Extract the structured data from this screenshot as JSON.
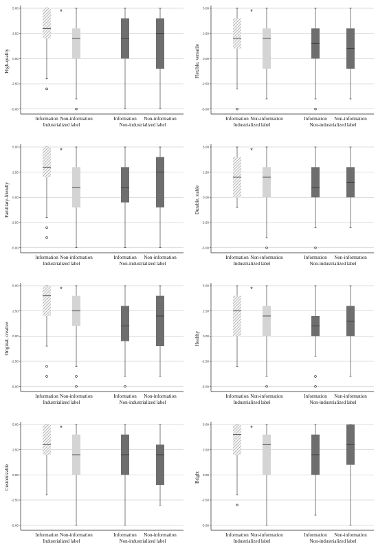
{
  "figure": {
    "pattern_colors": {
      "hatched_fill": "#f4f4f4",
      "hatched_line": "#8a8a8a",
      "light_gray": "#d4d4d4",
      "dark_gray": "#6e6e6e",
      "median": "#333333",
      "gridline": "#bdbdbd",
      "axis": "#222222"
    }
  },
  "chart_data": [
    {
      "type": "box",
      "ylabel": "High-quality",
      "ylim": [
        -5.5,
        5.0
      ],
      "yticks": [
        5.0,
        2.5,
        0.0,
        -2.5,
        -5.0
      ],
      "ytick_labels": [
        "5.00",
        "2.50",
        "0.00",
        "-2.50",
        "-5.00"
      ],
      "grid": "horizontal",
      "categories": [
        "Information",
        "Non-information",
        "Information",
        "Non-information"
      ],
      "groups": [
        "Industrialized label",
        "Non-industrialized label"
      ],
      "significance_marker": "*",
      "boxes": [
        {
          "whisker_low": -2,
          "q1": 2,
          "median": 3,
          "q3": 5,
          "whisker_high": 5,
          "outliers": [
            -3
          ]
        },
        {
          "whisker_low": -4,
          "q1": 0,
          "median": 2,
          "q3": 3,
          "whisker_high": 5,
          "outliers": [
            -5
          ]
        },
        {
          "whisker_low": -5,
          "q1": 0,
          "median": 2,
          "q3": 4,
          "whisker_high": 5,
          "outliers": []
        },
        {
          "whisker_low": -5,
          "q1": -1,
          "median": 2.5,
          "q3": 4,
          "whisker_high": 5,
          "outliers": []
        }
      ]
    },
    {
      "type": "box",
      "ylabel": "Flexible, versatile",
      "ylim": [
        -5.5,
        5.0
      ],
      "yticks": [
        5.0,
        2.5,
        0.0,
        -2.5,
        -5.0
      ],
      "ytick_labels": [
        "5.00",
        "2.50",
        "0.00",
        "-2.50",
        "-5.00"
      ],
      "grid": "horizontal",
      "categories": [
        "Information",
        "Non-information",
        "Information",
        "Non-information"
      ],
      "groups": [
        "Industrialized label",
        "Non-industrialized label"
      ],
      "significance_marker": "*",
      "boxes": [
        {
          "whisker_low": -3,
          "q1": 1,
          "median": 2,
          "q3": 4,
          "whisker_high": 5,
          "outliers": [
            -5
          ]
        },
        {
          "whisker_low": -4,
          "q1": -1,
          "median": 2,
          "q3": 3,
          "whisker_high": 5,
          "outliers": []
        },
        {
          "whisker_low": -4,
          "q1": 0,
          "median": 1.5,
          "q3": 3,
          "whisker_high": 5,
          "outliers": [
            -5
          ]
        },
        {
          "whisker_low": -4,
          "q1": -1,
          "median": 1,
          "q3": 3,
          "whisker_high": 5,
          "outliers": []
        }
      ]
    },
    {
      "type": "box",
      "ylabel": "Familiary-friendly",
      "ylim": [
        -5.5,
        5.0
      ],
      "yticks": [
        5.0,
        2.5,
        0.0,
        -2.5,
        -5.0
      ],
      "ytick_labels": [
        "5.00",
        "2.50",
        "0.00",
        "-2.50",
        "-5.00"
      ],
      "grid": "horizontal",
      "categories": [
        "Information",
        "Non-information",
        "Information",
        "Non-information"
      ],
      "groups": [
        "Industrialized label",
        "Non-industrialized label"
      ],
      "significance_marker": "*",
      "boxes": [
        {
          "whisker_low": -2,
          "q1": 2,
          "median": 3,
          "q3": 5,
          "whisker_high": 5,
          "outliers": [
            -3,
            -4
          ]
        },
        {
          "whisker_low": -5,
          "q1": -1,
          "median": 1,
          "q3": 3,
          "whisker_high": 5,
          "outliers": []
        },
        {
          "whisker_low": -5,
          "q1": -0.5,
          "median": 1,
          "q3": 3,
          "whisker_high": 5,
          "outliers": []
        },
        {
          "whisker_low": -5,
          "q1": -1,
          "median": 2.5,
          "q3": 4,
          "whisker_high": 5,
          "outliers": []
        }
      ]
    },
    {
      "type": "box",
      "ylabel": "Durable, stable",
      "ylim": [
        -5.5,
        5.0
      ],
      "yticks": [
        5.0,
        2.5,
        0.0,
        -2.5,
        -5.0
      ],
      "ytick_labels": [
        "5.00",
        "2.50",
        "0.00",
        "-2.50",
        "-5.00"
      ],
      "grid": "horizontal",
      "categories": [
        "Information",
        "Non-information",
        "Information",
        "Non-information"
      ],
      "groups": [
        "Industrialized label",
        "Non-industrialized label"
      ],
      "significance_marker": "*",
      "boxes": [
        {
          "whisker_low": -1,
          "q1": 0,
          "median": 2,
          "q3": 4,
          "whisker_high": 5,
          "outliers": []
        },
        {
          "whisker_low": -4,
          "q1": 0,
          "median": 2,
          "q3": 3,
          "whisker_high": 5,
          "outliers": [
            -5
          ]
        },
        {
          "whisker_low": -3,
          "q1": 0,
          "median": 1,
          "q3": 3,
          "whisker_high": 5,
          "outliers": [
            -5
          ]
        },
        {
          "whisker_low": -3,
          "q1": 0,
          "median": 1.5,
          "q3": 3,
          "whisker_high": 5,
          "outliers": []
        }
      ]
    },
    {
      "type": "box",
      "ylabel": "Original, creative",
      "ylim": [
        -5.5,
        5.0
      ],
      "yticks": [
        5.0,
        2.5,
        0.0,
        -2.5,
        -5.0
      ],
      "ytick_labels": [
        "5.00",
        "2.50",
        "0.00",
        "-2.50",
        "-5.00"
      ],
      "grid": "horizontal",
      "categories": [
        "Information",
        "Non-information",
        "Information",
        "Non-information"
      ],
      "groups": [
        "Industrialized label",
        "Non-industrialized label"
      ],
      "significance_marker": "*",
      "boxes": [
        {
          "whisker_low": -1,
          "q1": 2,
          "median": 4,
          "q3": 5,
          "whisker_high": 5,
          "outliers": [
            -3,
            -4
          ]
        },
        {
          "whisker_low": -3,
          "q1": 1,
          "median": 2.5,
          "q3": 4,
          "whisker_high": 5,
          "outliers": [
            -4,
            -5
          ]
        },
        {
          "whisker_low": -4,
          "q1": -0.5,
          "median": 1,
          "q3": 3,
          "whisker_high": 5,
          "outliers": [
            -5
          ]
        },
        {
          "whisker_low": -4,
          "q1": -1,
          "median": 2,
          "q3": 4,
          "whisker_high": 5,
          "outliers": []
        }
      ]
    },
    {
      "type": "box",
      "ylabel": "Healthy",
      "ylim": [
        -5.5,
        5.0
      ],
      "yticks": [
        5.0,
        2.5,
        0.0,
        -2.5,
        -5.0
      ],
      "ytick_labels": [
        "5.00",
        "2.50",
        "0.00",
        "-2.50",
        "-5.00"
      ],
      "grid": "horizontal",
      "categories": [
        "Information",
        "Non-information",
        "Information",
        "Non-information"
      ],
      "groups": [
        "Industrialized label",
        "Non-industrialized label"
      ],
      "significance_marker": "*",
      "boxes": [
        {
          "whisker_low": -3,
          "q1": 0,
          "median": 2.5,
          "q3": 4,
          "whisker_high": 5,
          "outliers": []
        },
        {
          "whisker_low": -4,
          "q1": 0,
          "median": 2,
          "q3": 3,
          "whisker_high": 5,
          "outliers": [
            -5
          ]
        },
        {
          "whisker_low": -2,
          "q1": 0,
          "median": 1,
          "q3": 2,
          "whisker_high": 5,
          "outliers": [
            -4,
            -5
          ]
        },
        {
          "whisker_low": -4,
          "q1": 0,
          "median": 1.5,
          "q3": 3,
          "whisker_high": 5,
          "outliers": []
        }
      ]
    },
    {
      "type": "box",
      "ylabel": "Customizable",
      "ylim": [
        -5.5,
        5.0
      ],
      "yticks": [
        5.0,
        2.5,
        0.0,
        -2.5,
        -5.0
      ],
      "ytick_labels": [
        "5.00",
        "2.50",
        "0.00",
        "-2.50",
        "-5.00"
      ],
      "grid": "horizontal",
      "categories": [
        "Information",
        "Non-information",
        "Information",
        "Non-information"
      ],
      "groups": [
        "Industrialized label",
        "Non-industrialized label"
      ],
      "significance_marker": "*",
      "boxes": [
        {
          "whisker_low": -2,
          "q1": 2,
          "median": 3,
          "q3": 5,
          "whisker_high": 5,
          "outliers": []
        },
        {
          "whisker_low": -5,
          "q1": 0,
          "median": 2,
          "q3": 4,
          "whisker_high": 5,
          "outliers": []
        },
        {
          "whisker_low": -5,
          "q1": 0,
          "median": 2,
          "q3": 4,
          "whisker_high": 5,
          "outliers": []
        },
        {
          "whisker_low": -3,
          "q1": -1,
          "median": 2,
          "q3": 3,
          "whisker_high": 5,
          "outliers": []
        }
      ]
    },
    {
      "type": "box",
      "ylabel": "Bright",
      "ylim": [
        -5.5,
        5.0
      ],
      "yticks": [
        5.0,
        2.5,
        0.0,
        -2.5,
        -5.0
      ],
      "ytick_labels": [
        "5.00",
        "2.50",
        "0.00",
        "-2.50",
        "-5.00"
      ],
      "grid": "horizontal",
      "categories": [
        "Information",
        "Non-information",
        "Information",
        "Non-information"
      ],
      "groups": [
        "Industrialized label",
        "Non-industrialized label"
      ],
      "significance_marker": "*",
      "boxes": [
        {
          "whisker_low": -2,
          "q1": 2,
          "median": 4,
          "q3": 5,
          "whisker_high": 5,
          "outliers": [
            -3
          ]
        },
        {
          "whisker_low": -5,
          "q1": 0,
          "median": 3,
          "q3": 4,
          "whisker_high": 5,
          "outliers": []
        },
        {
          "whisker_low": -4,
          "q1": 0,
          "median": 2,
          "q3": 4,
          "whisker_high": 5,
          "outliers": []
        },
        {
          "whisker_low": -5,
          "q1": 1,
          "median": 3,
          "q3": 5,
          "whisker_high": 5,
          "outliers": []
        }
      ]
    }
  ]
}
